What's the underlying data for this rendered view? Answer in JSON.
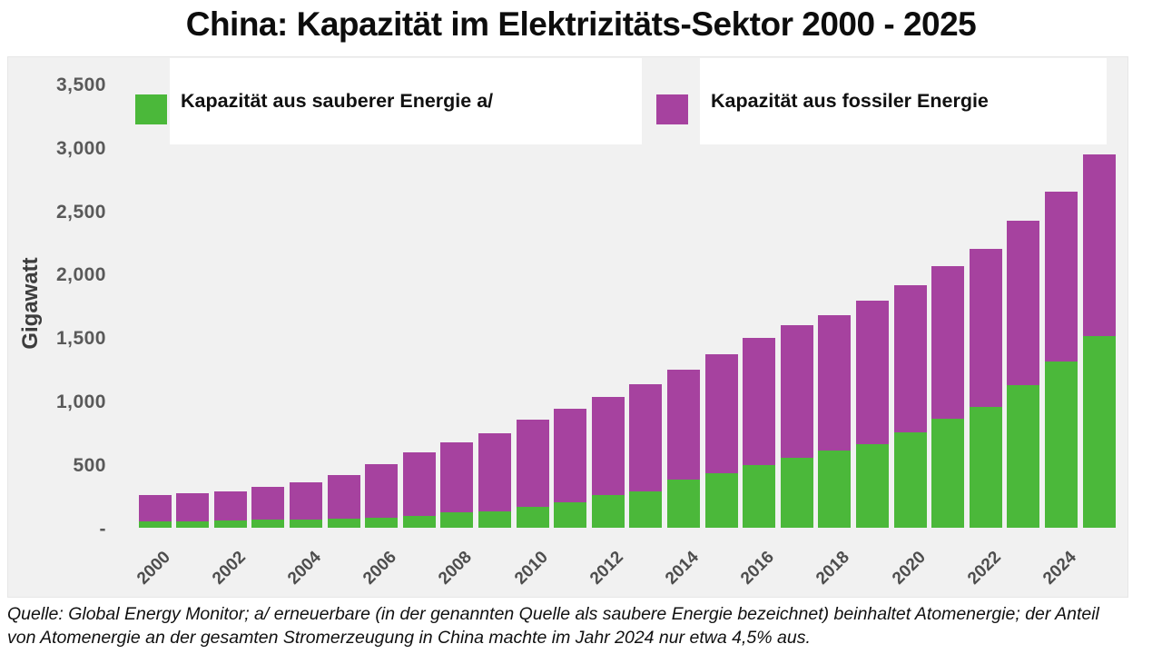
{
  "footer": {
    "line1": "Quelle: Global Energy Monitor;  a/ erneuerbare (in der genannten Quelle als saubere Energie bezeichnet) beinhaltet Atomenergie; der Anteil",
    "line2": "von Atomenergie an der gesamten Stromerzeugung in China machte im Jahr 2024  nur etwa 4,5% aus."
  },
  "chart_data": {
    "type": "bar",
    "stacked": true,
    "title": "China: Kapazität im Elektrizitäts-Sektor 2000 - 2025",
    "ylabel": "Gigawatt",
    "unit": "GW",
    "ylim": [
      0,
      3500
    ],
    "grid": false,
    "legend_position": "top",
    "plot_background": "#f1f1f1",
    "x": [
      2000,
      2001,
      2002,
      2003,
      2004,
      2005,
      2006,
      2007,
      2008,
      2009,
      2010,
      2011,
      2012,
      2013,
      2014,
      2015,
      2016,
      2017,
      2018,
      2019,
      2020,
      2021,
      2022,
      2023,
      2024,
      2025
    ],
    "xtick_labels": [
      "2000",
      "2002",
      "2004",
      "2006",
      "2008",
      "2010",
      "2012",
      "2014",
      "2016",
      "2018",
      "2020",
      "2022",
      "2024"
    ],
    "ytick_values": [
      3500,
      3000,
      2500,
      2000,
      1500,
      1000,
      500,
      0
    ],
    "ytick_labels": [
      "3,500",
      "3,000",
      "2,500",
      "2,000",
      "1,500",
      "1,000",
      "500",
      "-"
    ],
    "series": [
      {
        "name": "Kapazität aus sauberer Energie a/",
        "color": "#4bb83a",
        "values": [
          50,
          50,
          60,
          65,
          65,
          75,
          80,
          90,
          120,
          130,
          165,
          200,
          260,
          285,
          380,
          430,
          495,
          555,
          610,
          660,
          750,
          860,
          955,
          1125,
          1310,
          1510
        ]
      },
      {
        "name": "Kapazität aus fossiler Energie",
        "color": "#a6429f",
        "values": [
          205,
          220,
          230,
          260,
          290,
          340,
          420,
          505,
          555,
          615,
          685,
          740,
          775,
          850,
          865,
          940,
          1005,
          1045,
          1065,
          1130,
          1165,
          1205,
          1245,
          1295,
          1340,
          1435
        ]
      }
    ]
  }
}
